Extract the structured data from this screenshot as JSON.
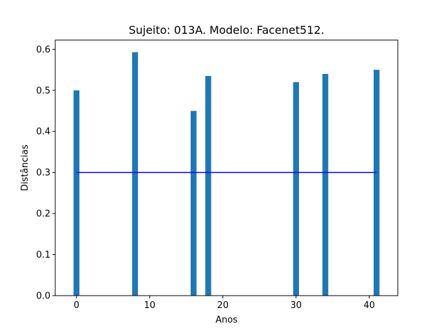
{
  "chart_data": {
    "type": "bar",
    "title": "Sujeito: 013A. Modelo: Facenet512.",
    "xlabel": "Anos",
    "ylabel": "Distâncias",
    "x": [
      0,
      8,
      16,
      18,
      30,
      34,
      41
    ],
    "values": [
      0.5,
      0.593,
      0.45,
      0.535,
      0.52,
      0.54,
      0.55
    ],
    "xlim": [
      -2.9,
      43.9
    ],
    "ylim": [
      0,
      0.6225
    ],
    "xticks": [
      0,
      10,
      20,
      30,
      40
    ],
    "yticks": [
      0.0,
      0.1,
      0.2,
      0.3,
      0.4,
      0.5,
      0.6
    ],
    "bar_width": 0.8,
    "bar_color": "#1f77b4",
    "threshold": {
      "value": 0.3,
      "x_start": 0,
      "x_end": 41,
      "color": "#0000ff"
    },
    "grid": false,
    "legend": "none"
  }
}
